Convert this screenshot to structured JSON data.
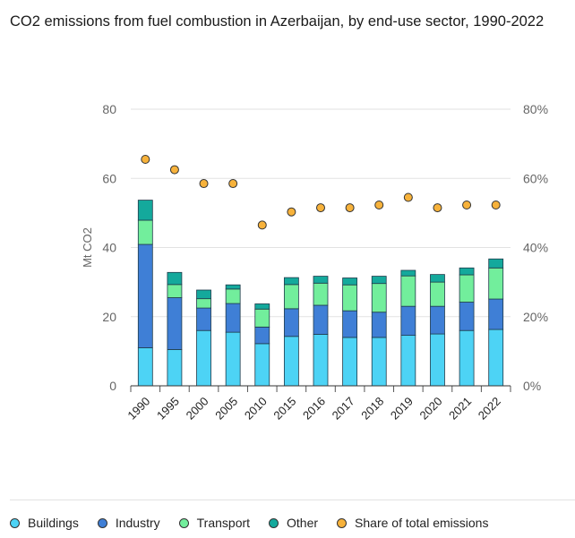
{
  "title": "CO2 emissions from fuel combustion in Azerbaijan, by end-use sector, 1990-2022",
  "chart_data": {
    "type": "bar",
    "stacked": true,
    "categories": [
      "1990",
      "1995",
      "2000",
      "2005",
      "2010",
      "2015",
      "2016",
      "2017",
      "2018",
      "2019",
      "2020",
      "2021",
      "2022"
    ],
    "ylabel": "Mt CO2",
    "ylim": [
      0,
      80
    ],
    "y_ticks": [
      "0",
      "20",
      "40",
      "60",
      "80"
    ],
    "y2lim": [
      0,
      80
    ],
    "y2_ticks": [
      "0%",
      "20%",
      "40%",
      "60%",
      "80%"
    ],
    "grid": true,
    "legend_position": "bottom",
    "series": [
      {
        "name": "Buildings",
        "color": "#4dd3f5",
        "values": [
          11,
          10.5,
          16,
          15.5,
          12.2,
          14.3,
          14.9,
          14,
          14,
          14.6,
          15,
          16,
          16.3
        ]
      },
      {
        "name": "Industry",
        "color": "#3f7fd6",
        "values": [
          29.9,
          15,
          6.5,
          8.3,
          4.8,
          8,
          8.4,
          7.7,
          7.3,
          8.4,
          8,
          8.2,
          8.8
        ]
      },
      {
        "name": "Transport",
        "color": "#72ee9c",
        "values": [
          7,
          3.8,
          2.7,
          4.2,
          5.2,
          7,
          6.4,
          7.5,
          8.3,
          8.8,
          7,
          7.9,
          9
        ]
      },
      {
        "name": "Other",
        "color": "#14a99c",
        "values": [
          5.8,
          3.5,
          2.5,
          1.2,
          1.5,
          2,
          2,
          2,
          2.1,
          1.6,
          2.2,
          2,
          2.6
        ]
      }
    ],
    "line_series": {
      "name": "Share of total emissions",
      "color": "#f7b23b",
      "axis": "right",
      "unit": "%",
      "values": [
        65.5,
        62.5,
        58.5,
        58.5,
        46.5,
        50.3,
        51.5,
        51.5,
        52.3,
        54.5,
        51.5,
        52.3,
        52.3
      ]
    }
  },
  "legend": [
    {
      "label": "Buildings",
      "color": "#4dd3f5"
    },
    {
      "label": "Industry",
      "color": "#3f7fd6"
    },
    {
      "label": "Transport",
      "color": "#72ee9c"
    },
    {
      "label": "Other",
      "color": "#14a99c"
    },
    {
      "label": "Share of total emissions",
      "color": "#f7b23b"
    }
  ]
}
